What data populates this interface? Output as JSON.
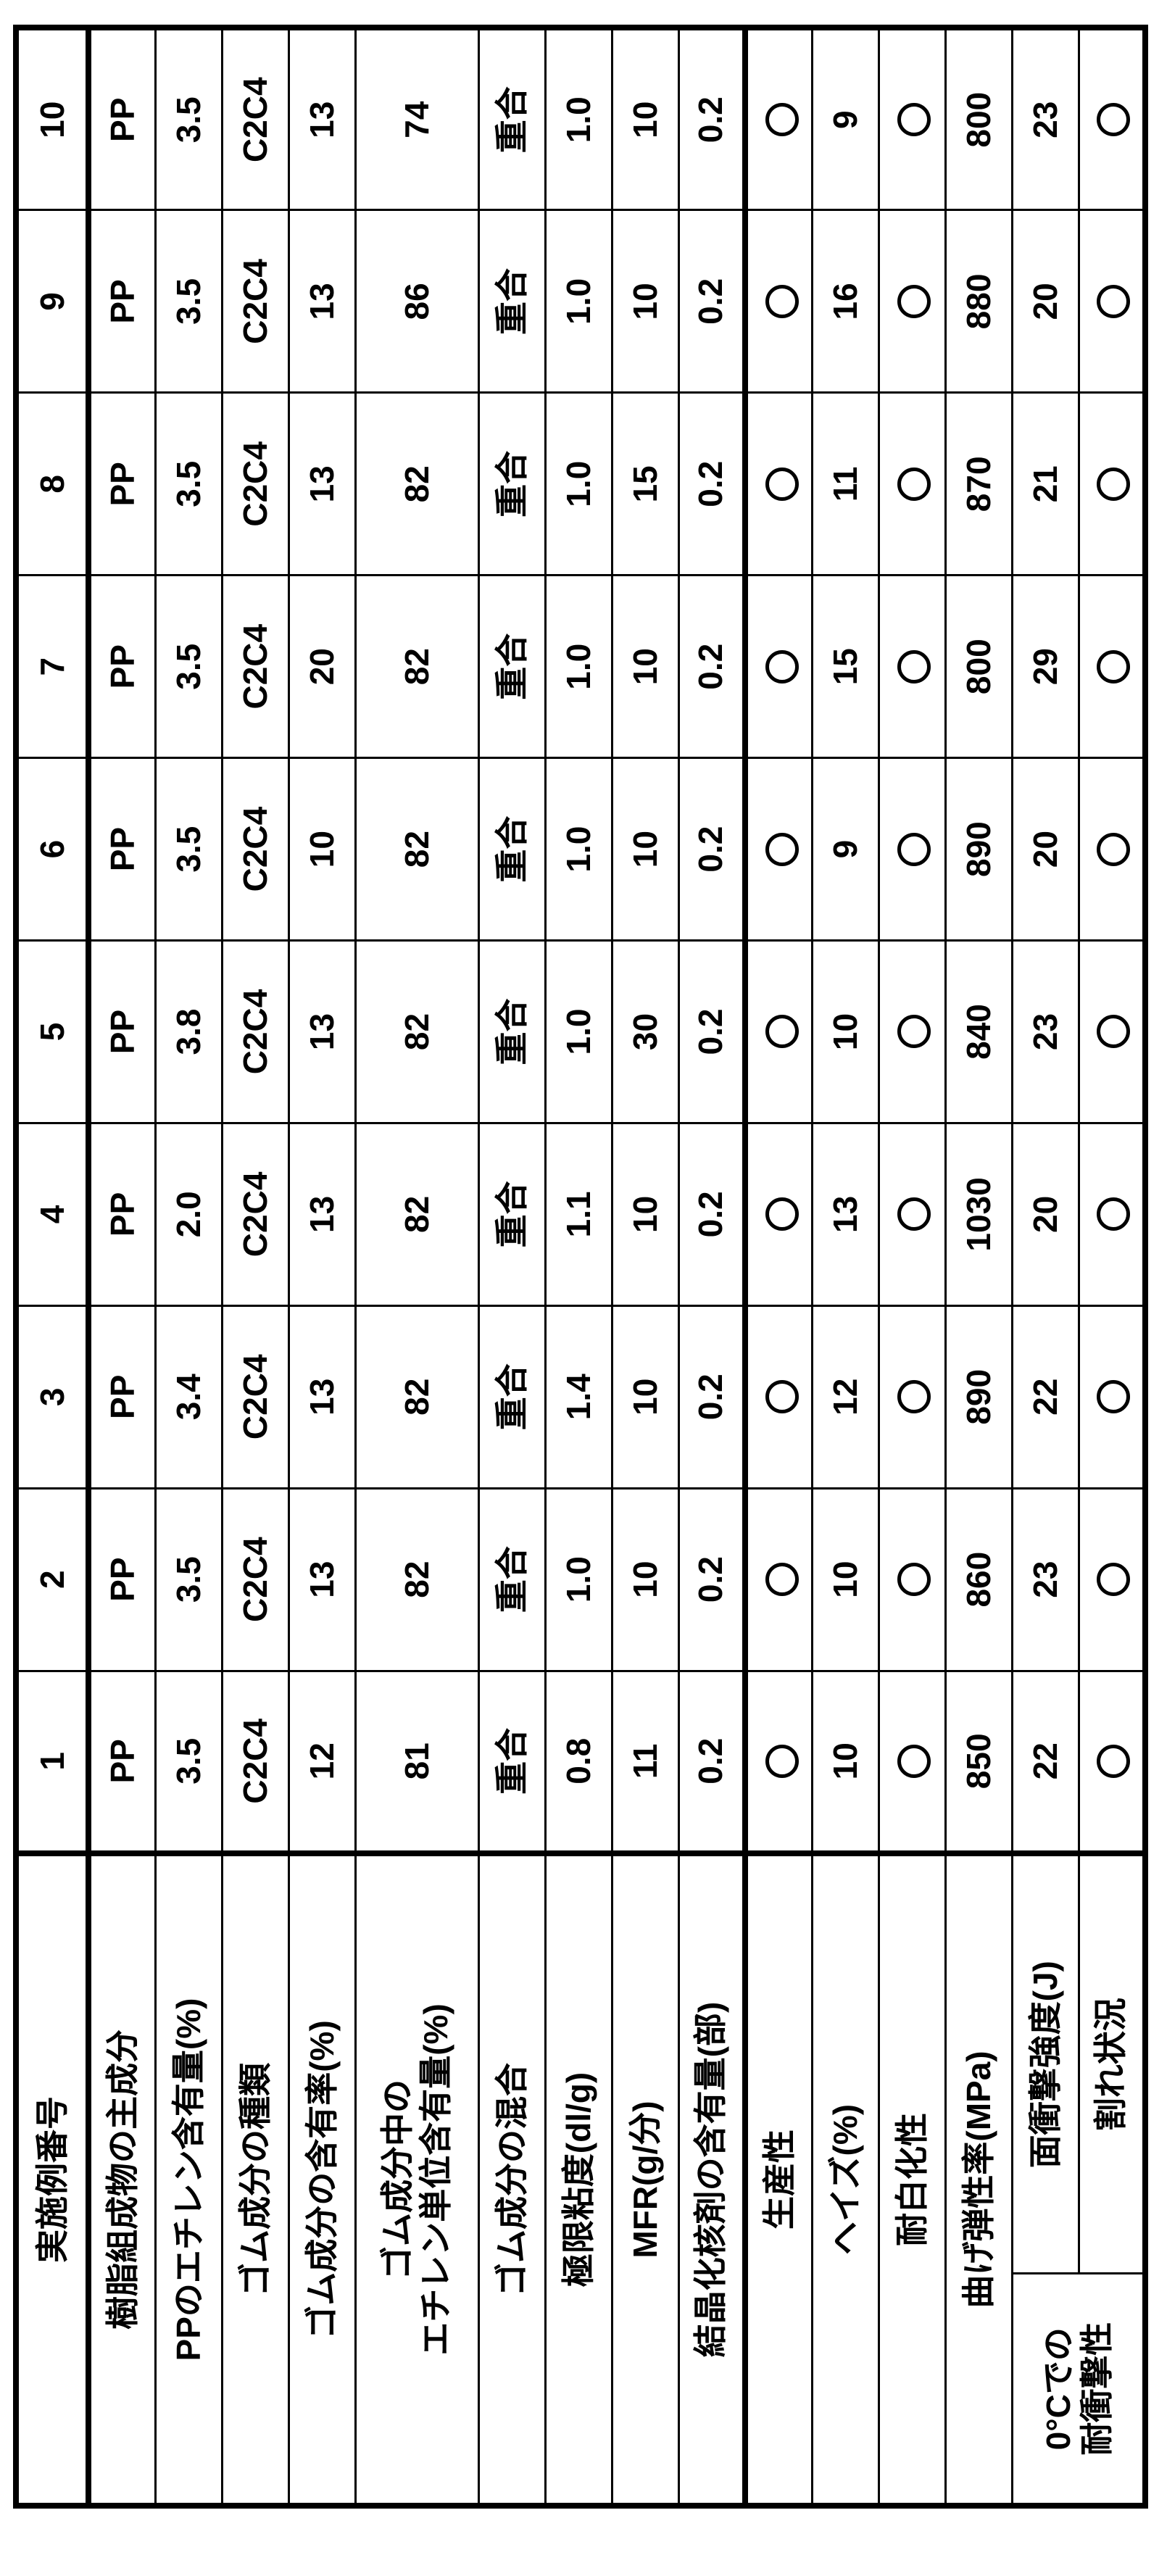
{
  "table": {
    "header_label": "実施例番号",
    "columns": [
      "1",
      "2",
      "3",
      "4",
      "5",
      "6",
      "7",
      "8",
      "9",
      "10"
    ],
    "rows": [
      {
        "label": "樹脂組成物の主成分",
        "values": [
          "PP",
          "PP",
          "PP",
          "PP",
          "PP",
          "PP",
          "PP",
          "PP",
          "PP",
          "PP"
        ]
      },
      {
        "label": "PPのエチレン含有量(%)",
        "values": [
          "3.5",
          "3.5",
          "3.4",
          "2.0",
          "3.8",
          "3.5",
          "3.5",
          "3.5",
          "3.5",
          "3.5"
        ]
      },
      {
        "label": "ゴム成分の種類",
        "values": [
          "C2C4",
          "C2C4",
          "C2C4",
          "C2C4",
          "C2C4",
          "C2C4",
          "C2C4",
          "C2C4",
          "C2C4",
          "C2C4"
        ]
      },
      {
        "label": "ゴム成分の含有率(%)",
        "values": [
          "12",
          "13",
          "13",
          "13",
          "13",
          "10",
          "20",
          "13",
          "13",
          "13"
        ]
      },
      {
        "label": "ゴム成分中の\nエチレン単位含有量(%)",
        "values": [
          "81",
          "82",
          "82",
          "82",
          "82",
          "82",
          "82",
          "82",
          "86",
          "74"
        ]
      },
      {
        "label": "ゴム成分の混合",
        "values": [
          "重合",
          "重合",
          "重合",
          "重合",
          "重合",
          "重合",
          "重合",
          "重合",
          "重合",
          "重合"
        ]
      },
      {
        "label": "極限粘度(dl/g)",
        "values": [
          "0.8",
          "1.0",
          "1.4",
          "1.1",
          "1.0",
          "1.0",
          "1.0",
          "1.0",
          "1.0",
          "1.0"
        ]
      },
      {
        "label": "MFR(g/分)",
        "values": [
          "11",
          "10",
          "10",
          "10",
          "30",
          "10",
          "10",
          "15",
          "10",
          "10"
        ]
      },
      {
        "label": "結晶化核剤の含有量(部)",
        "values": [
          "0.2",
          "0.2",
          "0.2",
          "0.2",
          "0.2",
          "0.2",
          "0.2",
          "0.2",
          "0.2",
          "0.2"
        ]
      },
      {
        "label": "生産性",
        "values": [
          "○",
          "○",
          "○",
          "○",
          "○",
          "○",
          "○",
          "○",
          "○",
          "○"
        ]
      },
      {
        "label": "ヘイズ(%)",
        "values": [
          "10",
          "10",
          "12",
          "13",
          "10",
          "9",
          "15",
          "11",
          "16",
          "9"
        ]
      },
      {
        "label": "耐白化性",
        "values": [
          "○",
          "○",
          "○",
          "○",
          "○",
          "○",
          "○",
          "○",
          "○",
          "○"
        ]
      },
      {
        "label": "曲げ弾性率(MPa)",
        "values": [
          "850",
          "860",
          "890",
          "1030",
          "840",
          "890",
          "800",
          "870",
          "880",
          "800"
        ]
      }
    ],
    "impact_group": {
      "label": "0°Cでの\n耐衝撃性",
      "rows": [
        {
          "label": "面衝撃強度(J)",
          "values": [
            "22",
            "23",
            "22",
            "20",
            "23",
            "20",
            "29",
            "21",
            "20",
            "23"
          ]
        },
        {
          "label": "割れ状況",
          "values": [
            "○",
            "○",
            "○",
            "○",
            "○",
            "○",
            "○",
            "○",
            "○",
            "○"
          ]
        }
      ]
    }
  }
}
